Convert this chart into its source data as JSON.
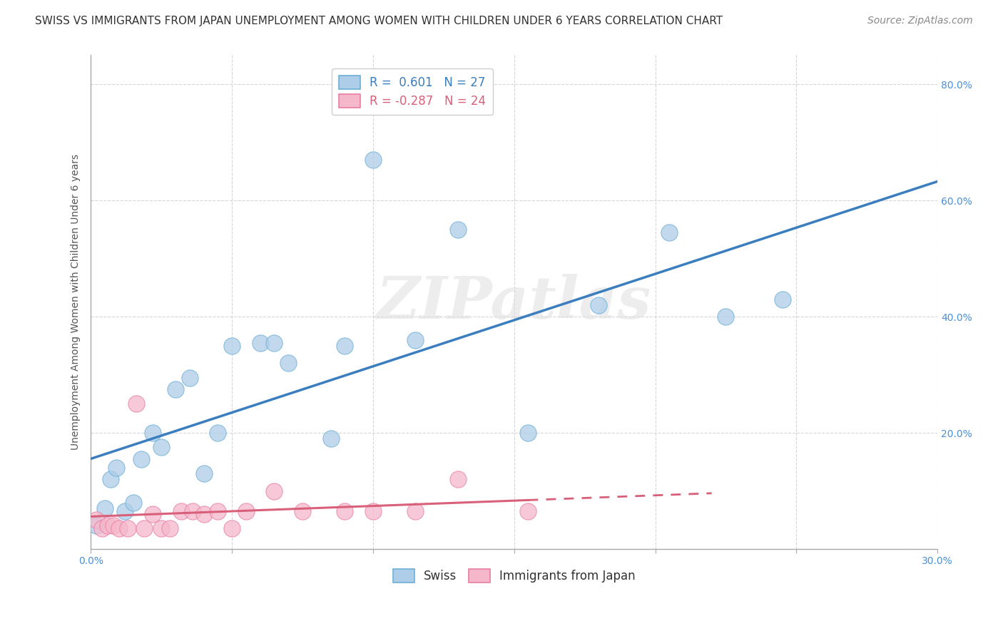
{
  "title": "SWISS VS IMMIGRANTS FROM JAPAN UNEMPLOYMENT AMONG WOMEN WITH CHILDREN UNDER 6 YEARS CORRELATION CHART",
  "source": "Source: ZipAtlas.com",
  "ylabel": "Unemployment Among Women with Children Under 6 years",
  "xlim": [
    0.0,
    0.3
  ],
  "ylim": [
    0.0,
    0.85
  ],
  "xticks": [
    0.0,
    0.05,
    0.1,
    0.15,
    0.2,
    0.25,
    0.3
  ],
  "yticks": [
    0.0,
    0.2,
    0.4,
    0.6,
    0.8
  ],
  "xticklabels": [
    "0.0%",
    "",
    "",
    "",
    "",
    "",
    "30.0%"
  ],
  "yticklabels": [
    "",
    "20.0%",
    "40.0%",
    "60.0%",
    "80.0%"
  ],
  "swiss_R": 0.601,
  "swiss_N": 27,
  "japan_R": -0.287,
  "japan_N": 24,
  "swiss_color": "#aecde8",
  "japan_color": "#f5b8cb",
  "swiss_edge_color": "#6aaed6",
  "japan_edge_color": "#e87da0",
  "swiss_line_color": "#3a7ebf",
  "japan_line_color": "#d9607a",
  "background_color": "#ffffff",
  "watermark_text": "ZIPatlas",
  "swiss_x": [
    0.002,
    0.005,
    0.007,
    0.009,
    0.012,
    0.015,
    0.018,
    0.022,
    0.025,
    0.03,
    0.035,
    0.04,
    0.045,
    0.05,
    0.06,
    0.065,
    0.07,
    0.085,
    0.09,
    0.1,
    0.115,
    0.13,
    0.155,
    0.18,
    0.205,
    0.225,
    0.245
  ],
  "swiss_y": [
    0.04,
    0.07,
    0.12,
    0.14,
    0.065,
    0.08,
    0.155,
    0.2,
    0.175,
    0.275,
    0.295,
    0.13,
    0.2,
    0.35,
    0.355,
    0.355,
    0.32,
    0.19,
    0.35,
    0.67,
    0.36,
    0.55,
    0.2,
    0.42,
    0.545,
    0.4,
    0.43
  ],
  "japan_x": [
    0.002,
    0.004,
    0.006,
    0.008,
    0.01,
    0.013,
    0.016,
    0.019,
    0.022,
    0.025,
    0.028,
    0.032,
    0.036,
    0.04,
    0.045,
    0.05,
    0.055,
    0.065,
    0.075,
    0.09,
    0.1,
    0.115,
    0.13,
    0.155
  ],
  "japan_y": [
    0.05,
    0.035,
    0.04,
    0.04,
    0.035,
    0.035,
    0.25,
    0.035,
    0.06,
    0.035,
    0.035,
    0.065,
    0.065,
    0.06,
    0.065,
    0.035,
    0.065,
    0.1,
    0.065,
    0.065,
    0.065,
    0.065,
    0.12,
    0.065
  ],
  "title_fontsize": 11,
  "source_fontsize": 10,
  "label_fontsize": 10,
  "tick_fontsize": 10,
  "legend_fontsize": 12,
  "grid_color": "#bbbbbb",
  "grid_style": "--"
}
